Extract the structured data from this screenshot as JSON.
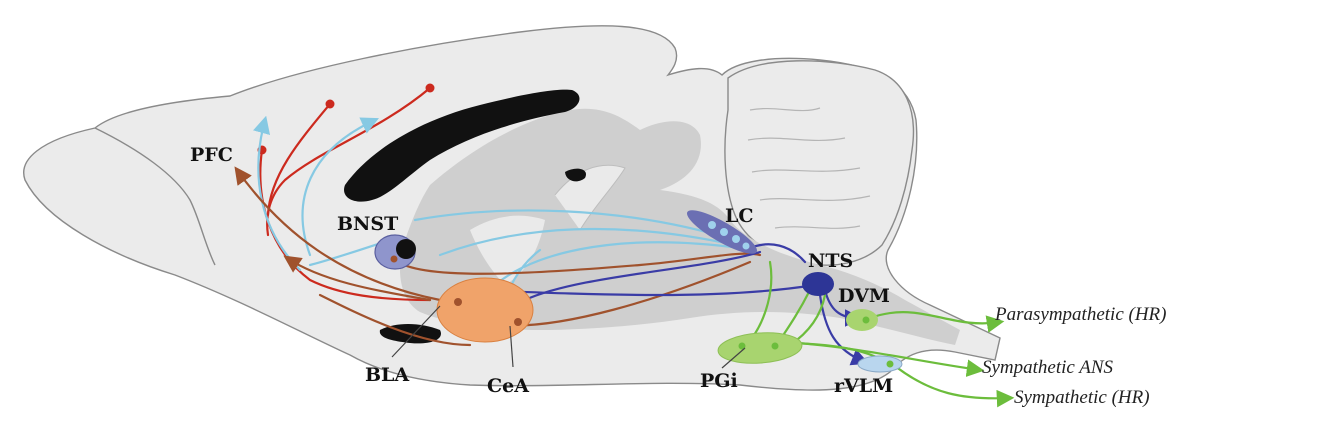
{
  "regions": {
    "pfc": "PFC",
    "bnst": "BNST",
    "lc": "LC",
    "nts": "NTS",
    "dvm": "DVM",
    "bla": "BLA",
    "cea": "CeA",
    "pgi": "PGi",
    "rvlm": "rVLM"
  },
  "outputs": {
    "parasympathetic_hr": "Parasympathetic (HR)",
    "sympathetic_ans": "Sympathetic ANS",
    "sympathetic_hr": "Sympathetic (HR)"
  },
  "colors": {
    "red": "#cc2a1e",
    "cyan": "#86c9e3",
    "brown": "#a0522d",
    "navy": "#3a3ca6",
    "green": "#6cbd3c",
    "amygdala": "#f0a36a",
    "bnst_fill": "#8f95cc"
  }
}
